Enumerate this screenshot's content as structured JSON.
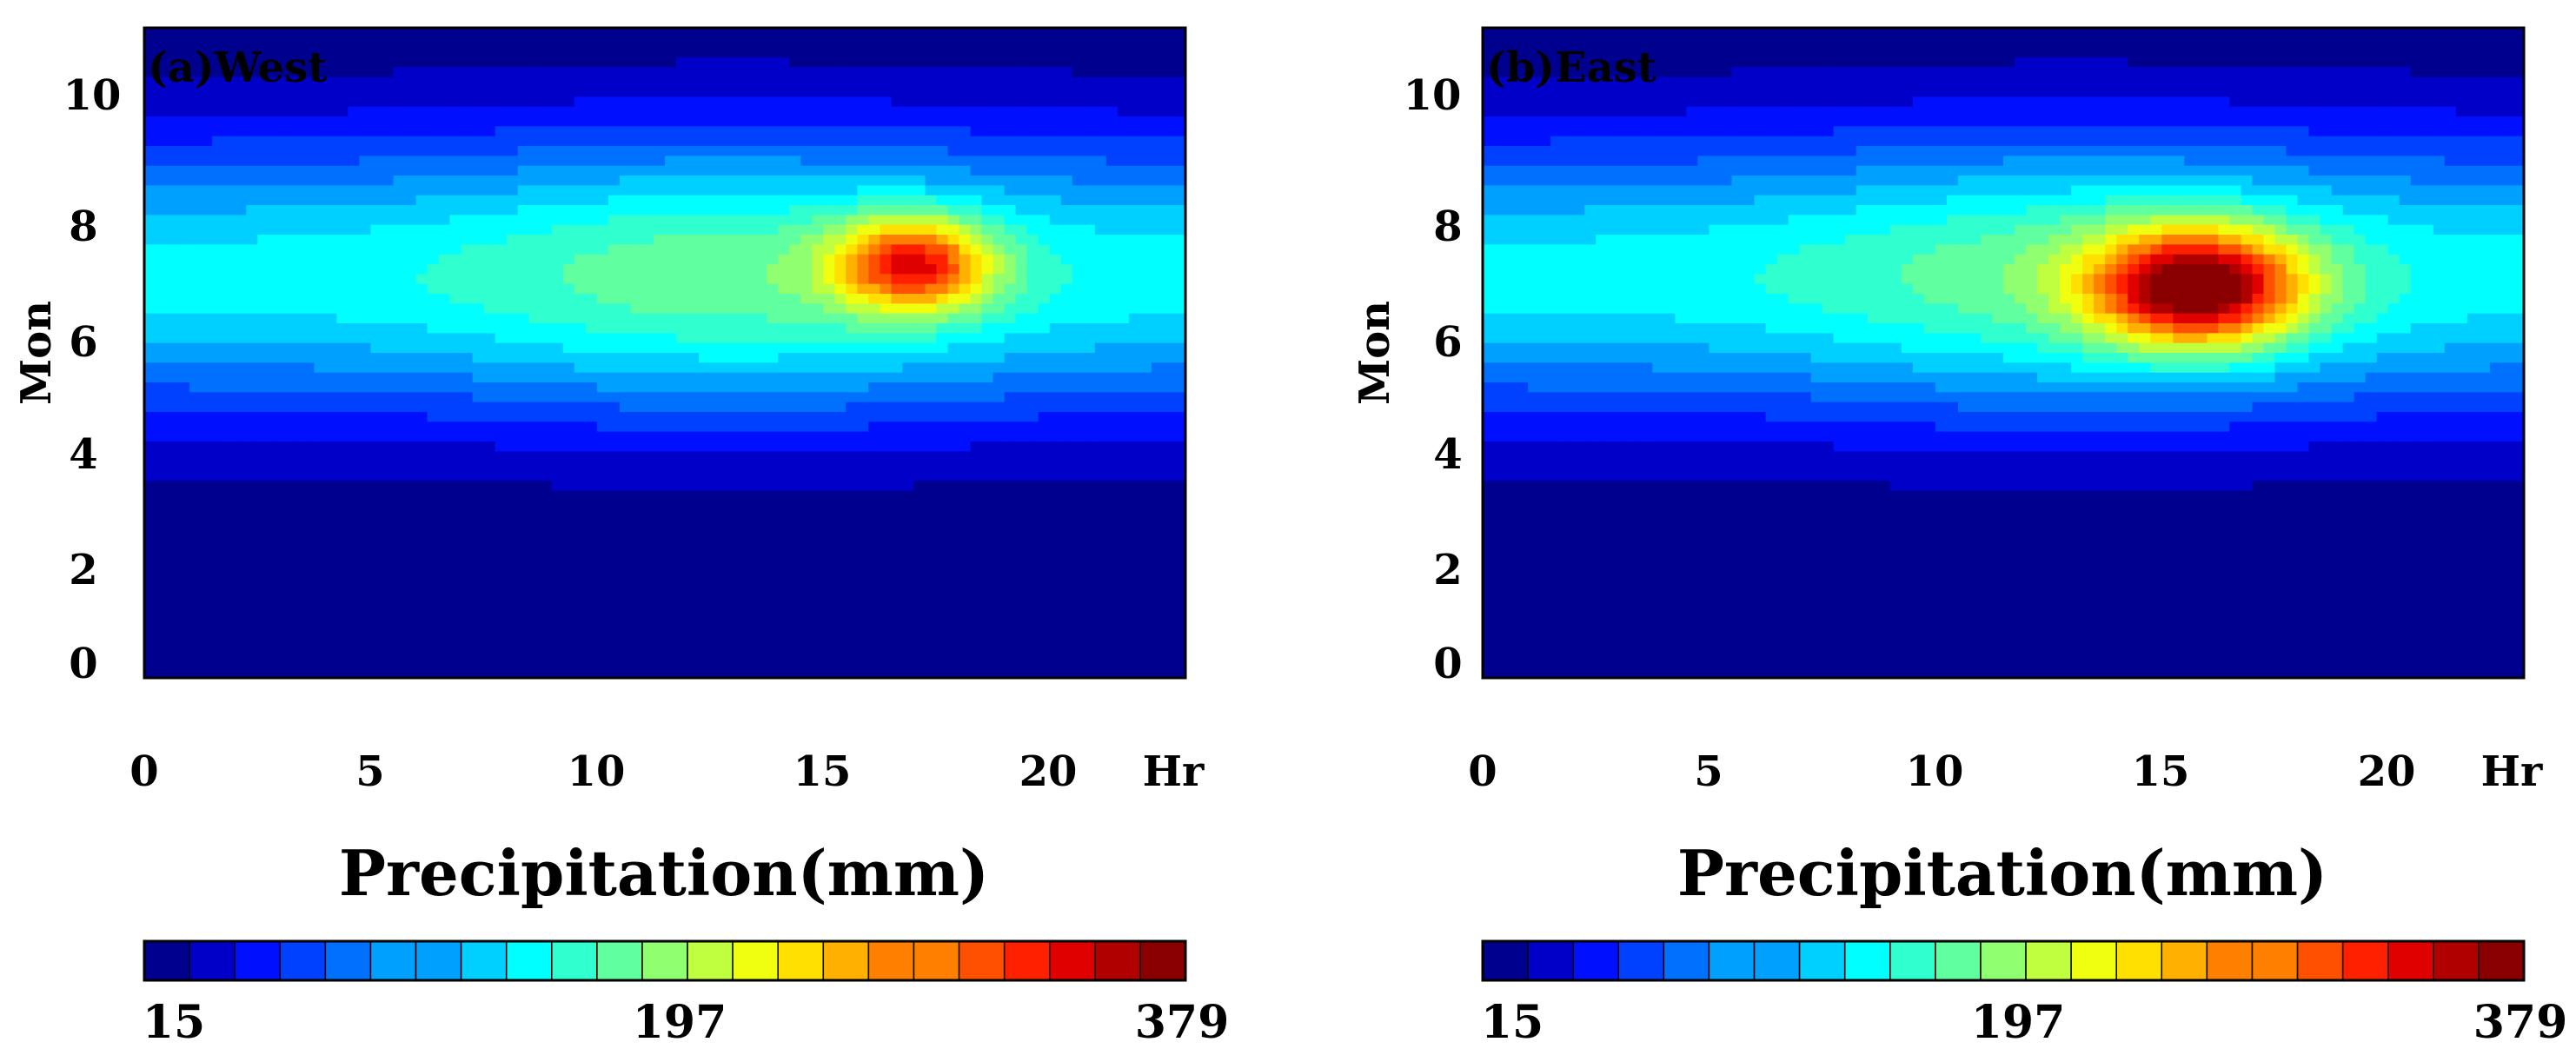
{
  "chart_data": [
    {
      "type": "heatmap",
      "panel_label": "(a)West",
      "xlabel": "Hr",
      "ylabel": "Mon",
      "xlim": [
        0,
        23
      ],
      "ylim": [
        0,
        11
      ],
      "x_ticks": [
        "0",
        "5",
        "10",
        "15",
        "20"
      ],
      "y_ticks": [
        "0",
        "2",
        "4",
        "6",
        "8",
        "10"
      ],
      "colorbar": {
        "title": "Precipitation(mm)",
        "min_label": "15",
        "mid_label": "197",
        "max_label": "379",
        "min": 15,
        "max": 379,
        "levels": 23
      },
      "hotspot": {
        "x": 17,
        "y": 7,
        "peak": 320,
        "sx": 1.7,
        "sy": 0.8
      }
    },
    {
      "type": "heatmap",
      "panel_label": "(b)East",
      "xlabel": "Hr",
      "ylabel": "Mon",
      "xlim": [
        0,
        23
      ],
      "ylim": [
        0,
        11
      ],
      "x_ticks": [
        "0",
        "5",
        "10",
        "15",
        "20"
      ],
      "y_ticks": [
        "0",
        "2",
        "4",
        "6",
        "8",
        "10"
      ],
      "colorbar": {
        "title": "Precipitation(mm)",
        "min_label": "15",
        "mid_label": "197",
        "max_label": "379",
        "min": 15,
        "max": 379,
        "levels": 23
      },
      "hotspot": {
        "x": 15.8,
        "y": 6.6,
        "peak": 379,
        "sx": 2.3,
        "sy": 1.0
      }
    }
  ],
  "colors": {
    "colormap": [
      "#00008f",
      "#0000c8",
      "#0010ff",
      "#0040ff",
      "#0070ff",
      "#00a0ff",
      "#00d0ff",
      "#00ffff",
      "#30ffd0",
      "#60ffa0",
      "#90ff70",
      "#c0ff40",
      "#f0ff10",
      "#ffe000",
      "#ffb000",
      "#ff8000",
      "#ff5000",
      "#ff2000",
      "#e00000",
      "#b00000",
      "#8a0000"
    ],
    "axis": "#000000"
  }
}
